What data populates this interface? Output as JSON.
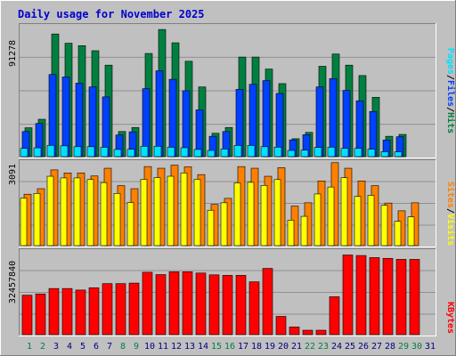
{
  "title": "Daily usage for November 2025",
  "colors": {
    "background": "#c0c0c0",
    "frame": "#ffffff",
    "hits": "#008040",
    "files": "#0040ff",
    "pages": "#00e0ff",
    "visits": "#ffff00",
    "sites": "#ff8000",
    "kbytes": "#ff0000",
    "weekend_day": "#008040",
    "weekday_day": "#000080"
  },
  "legend": {
    "pages": "Pages",
    "sep1": "/",
    "files": "Files",
    "sep2": "/",
    "hits": "Hits",
    "sites": "Sites",
    "sep3": "/",
    "visits": "Visits",
    "kbytes": "KBytes"
  },
  "chart_data": [
    {
      "type": "bar",
      "name": "hits-files-pages",
      "ymax_label": "91278",
      "ylim": [
        0,
        91278
      ],
      "categories": [
        "1",
        "2",
        "3",
        "4",
        "5",
        "6",
        "7",
        "8",
        "9",
        "10",
        "11",
        "12",
        "13",
        "14",
        "15",
        "16",
        "17",
        "18",
        "19",
        "20",
        "21",
        "22",
        "23",
        "24",
        "25",
        "26",
        "27",
        "28",
        "29",
        "30",
        "31"
      ],
      "weekend_days": [
        1,
        2,
        8,
        9,
        15,
        16,
        22,
        23,
        29,
        30
      ],
      "series": [
        {
          "name": "Hits",
          "values": [
            20000,
            25900,
            85000,
            78600,
            76900,
            73400,
            63400,
            17400,
            20200,
            71500,
            88100,
            78900,
            66100,
            48300,
            16200,
            20200,
            69000,
            69000,
            60700,
            50600,
            12400,
            16800,
            62600,
            71100,
            63400,
            56200,
            41100,
            14100,
            15400,
            0,
            0
          ]
        },
        {
          "name": "Files",
          "values": [
            17400,
            23000,
            56900,
            55200,
            50900,
            48300,
            41400,
            15000,
            17200,
            47100,
            59500,
            53600,
            45700,
            32400,
            14100,
            17400,
            46600,
            50100,
            52700,
            43800,
            11600,
            15200,
            48300,
            54100,
            45900,
            38700,
            31300,
            11500,
            13800,
            0,
            0
          ]
        },
        {
          "name": "Pages",
          "values": [
            5700,
            6100,
            7800,
            7500,
            6900,
            6900,
            6500,
            5000,
            5100,
            7200,
            7200,
            6500,
            6200,
            5000,
            4300,
            5300,
            7800,
            7800,
            6900,
            6600,
            4300,
            4500,
            6400,
            6600,
            5700,
            5700,
            5200,
            3400,
            3300,
            0,
            0
          ]
        }
      ]
    },
    {
      "type": "bar",
      "name": "visits-sites",
      "ymax_label": "3091",
      "ylim": [
        0,
        3091
      ],
      "categories": [
        "1",
        "2",
        "3",
        "4",
        "5",
        "6",
        "7",
        "8",
        "9",
        "10",
        "11",
        "12",
        "13",
        "14",
        "15",
        "16",
        "17",
        "18",
        "19",
        "20",
        "21",
        "22",
        "23",
        "24",
        "25",
        "26",
        "27",
        "28",
        "29",
        "30",
        "31"
      ],
      "series": [
        {
          "name": "Sites",
          "values": [
            1860,
            2060,
            2740,
            2630,
            2630,
            2520,
            2800,
            2170,
            2060,
            2860,
            2800,
            2910,
            2850,
            2570,
            1490,
            1710,
            2860,
            2800,
            2510,
            2820,
            1430,
            1550,
            2340,
            3000,
            2800,
            2340,
            2170,
            1540,
            1260,
            1550,
            0
          ]
        },
        {
          "name": "Visits",
          "values": [
            1720,
            1890,
            2510,
            2450,
            2450,
            2390,
            2280,
            1890,
            1560,
            2400,
            2460,
            2510,
            2630,
            2400,
            1280,
            1550,
            2270,
            2290,
            2180,
            2390,
            920,
            1060,
            1870,
            2120,
            2460,
            1780,
            1820,
            1460,
            880,
            1040,
            0
          ]
        }
      ]
    },
    {
      "type": "bar",
      "name": "kbytes",
      "ymax_label": "32457840",
      "ylim": [
        0,
        32457840
      ],
      "categories": [
        "1",
        "2",
        "3",
        "4",
        "5",
        "6",
        "7",
        "8",
        "9",
        "10",
        "11",
        "12",
        "13",
        "14",
        "15",
        "16",
        "17",
        "18",
        "19",
        "20",
        "21",
        "22",
        "23",
        "24",
        "25",
        "26",
        "27",
        "28",
        "29",
        "30",
        "31"
      ],
      "series": [
        {
          "name": "KBytes",
          "values": [
            15300000,
            15800000,
            17900000,
            17900000,
            17300000,
            18200000,
            19800000,
            19800000,
            20000000,
            24200000,
            23300000,
            24400000,
            24400000,
            23900000,
            23200000,
            23000000,
            23000000,
            20500000,
            25700000,
            7080000,
            2980000,
            1720000,
            1720000,
            14700000,
            30900000,
            30700000,
            29900000,
            29600000,
            29200000,
            29200000,
            0
          ]
        }
      ]
    }
  ]
}
